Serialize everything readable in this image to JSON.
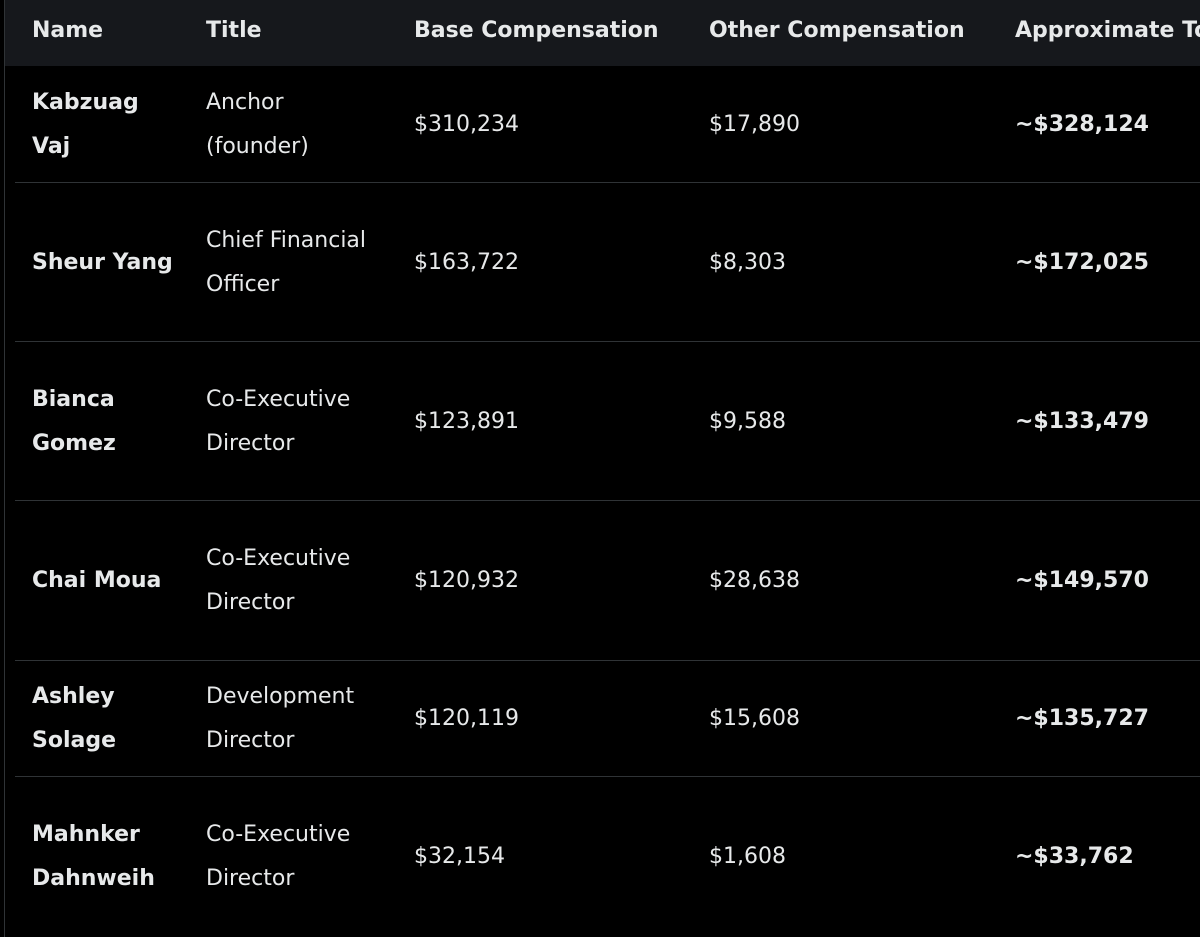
{
  "table": {
    "headers": [
      "Name",
      "Title",
      "Base Compensation",
      "Other Compensation",
      "Approximate To"
    ],
    "rows": [
      {
        "name": "Kabzuag Vaj",
        "title": "Anchor (founder)",
        "base": "$310,234",
        "other": "$17,890",
        "total": "~$328,124"
      },
      {
        "name": "Sheur Yang",
        "title": "Chief Financial Officer",
        "base": "$163,722",
        "other": "$8,303",
        "total": "~$172,025"
      },
      {
        "name": "Bianca Gomez",
        "title": "Co-Executive Director",
        "base": "$123,891",
        "other": "$9,588",
        "total": "~$133,479"
      },
      {
        "name": "Chai Moua",
        "title": "Co-Executive Director",
        "base": "$120,932",
        "other": "$28,638",
        "total": "~$149,570"
      },
      {
        "name": "Ashley Solage",
        "title": "Development Director",
        "base": "$120,119",
        "other": "$15,608",
        "total": "~$135,727"
      },
      {
        "name": "Mahnker Dahnweih",
        "title": "Co-Executive Director",
        "base": "$32,154",
        "other": "$1,608",
        "total": "~$33,762"
      }
    ]
  },
  "colors": {
    "background": "#000000",
    "header_background": "#16181c",
    "text": "#e7e9ea",
    "divider": "#2f3336"
  }
}
